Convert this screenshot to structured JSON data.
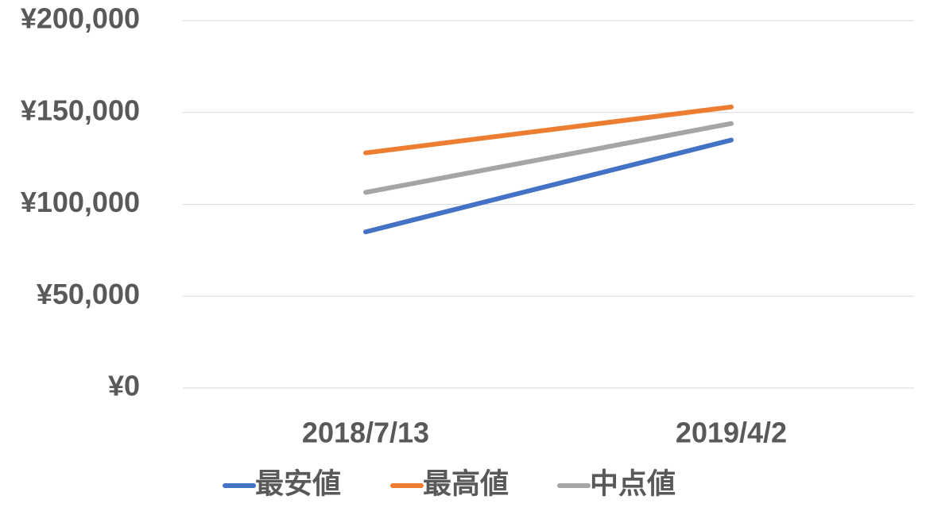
{
  "chart_data": {
    "type": "line",
    "categories": [
      "2018/7/13",
      "2019/4/2"
    ],
    "series": [
      {
        "name": "最安値",
        "color": "#4472c4",
        "values": [
          85000,
          135000
        ]
      },
      {
        "name": "最高値",
        "color": "#ed7d31",
        "values": [
          128000,
          153000
        ]
      },
      {
        "name": "中点値",
        "color": "#a5a5a5",
        "values": [
          106500,
          144000
        ]
      }
    ],
    "ylim": [
      0,
      200000
    ],
    "yticks": [
      {
        "value": 0,
        "label": "¥0"
      },
      {
        "value": 50000,
        "label": "¥50,000"
      },
      {
        "value": 100000,
        "label": "¥100,000"
      },
      {
        "value": 150000,
        "label": "¥150,000"
      },
      {
        "value": 200000,
        "label": "¥200,000"
      }
    ],
    "grid": true,
    "legend": "bottom"
  }
}
